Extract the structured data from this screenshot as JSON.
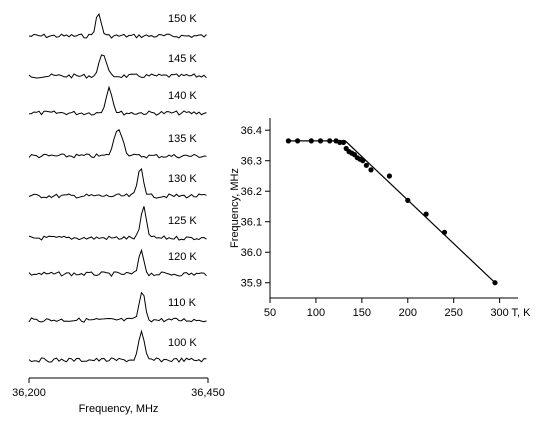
{
  "chart_data": [
    {
      "type": "line",
      "x_range": [
        36200,
        36450
      ],
      "xticks": [
        "36,200",
        "36,450"
      ],
      "xlabel": "Frequency, MHz",
      "traces": [
        {
          "label": "150 K",
          "peak": 36297
        },
        {
          "label": "145 K",
          "peak": 36303
        },
        {
          "label": "140 K",
          "peak": 36312
        },
        {
          "label": "135 K",
          "peak": 36325
        },
        {
          "label": "130 K",
          "peak": 36356
        },
        {
          "label": "125 K",
          "peak": 36360
        },
        {
          "label": "120 K",
          "peak": 36357
        },
        {
          "label": "110 K",
          "peak": 36358
        },
        {
          "label": "100 K",
          "peak": 36357
        }
      ]
    },
    {
      "type": "scatter",
      "xlabel": "T, K",
      "ylabel": "Frequency, MHz",
      "xlim": [
        50,
        320
      ],
      "ylim": [
        35.85,
        36.44
      ],
      "xticks": [
        50,
        100,
        150,
        200,
        250,
        300
      ],
      "xtick_labels": [
        "50",
        "100",
        "150",
        "200",
        "250",
        "300"
      ],
      "yticks": [
        35.9,
        36.0,
        36.1,
        36.2,
        36.3,
        36.4
      ],
      "ytick_labels": [
        "35.9",
        "36.0",
        "36.1",
        "36.2",
        "36.3",
        "36.4"
      ],
      "points": [
        [
          70,
          36.365
        ],
        [
          80,
          36.365
        ],
        [
          95,
          36.365
        ],
        [
          105,
          36.365
        ],
        [
          115,
          36.365
        ],
        [
          122,
          36.365
        ],
        [
          126,
          36.36
        ],
        [
          130,
          36.36
        ],
        [
          133,
          36.34
        ],
        [
          136,
          36.33
        ],
        [
          139,
          36.325
        ],
        [
          142,
          36.32
        ],
        [
          145,
          36.31
        ],
        [
          148,
          36.305
        ],
        [
          151,
          36.3
        ],
        [
          155,
          36.285
        ],
        [
          160,
          36.27
        ],
        [
          180,
          36.25
        ],
        [
          200,
          36.17
        ],
        [
          220,
          36.125
        ],
        [
          240,
          36.065
        ],
        [
          295,
          35.9
        ]
      ],
      "fit_line": [
        [
          70,
          36.365
        ],
        [
          132,
          36.365
        ],
        [
          295,
          35.9
        ]
      ]
    }
  ]
}
